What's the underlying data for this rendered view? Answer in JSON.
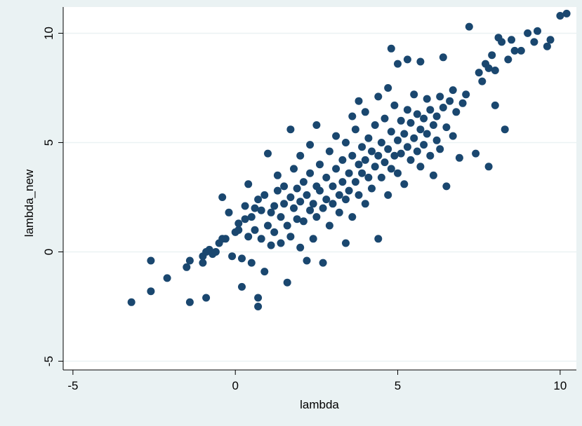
{
  "chart_data": {
    "type": "scatter",
    "title": "",
    "xlabel": "lambda",
    "ylabel": "lambda_new",
    "xlim": [
      -5.3,
      10.5
    ],
    "ylim": [
      -5.4,
      11.2
    ],
    "x_ticks": [
      -5,
      0,
      5,
      10
    ],
    "y_ticks": [
      -5,
      0,
      5,
      10
    ],
    "x_tick_labels": [
      "-5",
      "0",
      "5",
      "10"
    ],
    "y_tick_labels": [
      "-5",
      "0",
      "5",
      "10"
    ],
    "grid": "horizontal",
    "legend": "none",
    "marker_color": "#1a476f",
    "plot_background": "#ffffff",
    "outer_background": "#eaf2f3",
    "grid_color": "#eaf2f3",
    "points": [
      [
        -3.2,
        -2.3
      ],
      [
        -2.6,
        -1.8
      ],
      [
        -2.6,
        -0.4
      ],
      [
        -2.1,
        -1.2
      ],
      [
        -1.5,
        -0.7
      ],
      [
        -1.4,
        -0.4
      ],
      [
        -1.4,
        -2.3
      ],
      [
        -1.0,
        -0.2
      ],
      [
        -1.0,
        -0.5
      ],
      [
        -0.9,
        -2.1
      ],
      [
        -0.9,
        0.0
      ],
      [
        -0.8,
        0.1
      ],
      [
        -0.7,
        -0.1
      ],
      [
        -0.6,
        0.0
      ],
      [
        -0.5,
        0.4
      ],
      [
        -0.4,
        0.6
      ],
      [
        -0.4,
        2.5
      ],
      [
        -0.3,
        0.6
      ],
      [
        -0.2,
        1.8
      ],
      [
        -0.1,
        -0.2
      ],
      [
        0.0,
        0.9
      ],
      [
        0.1,
        1.0
      ],
      [
        0.1,
        1.3
      ],
      [
        0.2,
        -0.3
      ],
      [
        0.2,
        -1.6
      ],
      [
        0.3,
        1.5
      ],
      [
        0.3,
        2.1
      ],
      [
        0.4,
        3.1
      ],
      [
        0.4,
        0.7
      ],
      [
        0.5,
        -0.5
      ],
      [
        0.5,
        1.6
      ],
      [
        0.6,
        1.0
      ],
      [
        0.6,
        2.0
      ],
      [
        0.7,
        -2.1
      ],
      [
        0.7,
        -2.5
      ],
      [
        0.7,
        2.4
      ],
      [
        0.8,
        0.6
      ],
      [
        0.8,
        1.9
      ],
      [
        0.9,
        2.6
      ],
      [
        0.9,
        -0.9
      ],
      [
        1.0,
        1.2
      ],
      [
        1.0,
        4.5
      ],
      [
        1.1,
        1.8
      ],
      [
        1.1,
        0.3
      ],
      [
        1.2,
        2.1
      ],
      [
        1.2,
        0.9
      ],
      [
        1.3,
        3.5
      ],
      [
        1.3,
        2.8
      ],
      [
        1.4,
        0.4
      ],
      [
        1.4,
        1.6
      ],
      [
        1.5,
        2.2
      ],
      [
        1.5,
        3.0
      ],
      [
        1.6,
        -1.4
      ],
      [
        1.6,
        1.2
      ],
      [
        1.7,
        0.7
      ],
      [
        1.7,
        2.5
      ],
      [
        1.7,
        5.6
      ],
      [
        1.8,
        2.0
      ],
      [
        1.8,
        3.8
      ],
      [
        1.9,
        1.5
      ],
      [
        1.9,
        2.9
      ],
      [
        2.0,
        0.2
      ],
      [
        2.0,
        2.3
      ],
      [
        2.0,
        4.4
      ],
      [
        2.1,
        1.4
      ],
      [
        2.1,
        3.2
      ],
      [
        2.2,
        -0.4
      ],
      [
        2.2,
        2.6
      ],
      [
        2.3,
        4.9
      ],
      [
        2.3,
        1.9
      ],
      [
        2.3,
        3.6
      ],
      [
        2.4,
        2.2
      ],
      [
        2.4,
        0.6
      ],
      [
        2.5,
        3.0
      ],
      [
        2.5,
        1.6
      ],
      [
        2.5,
        5.8
      ],
      [
        2.6,
        2.8
      ],
      [
        2.6,
        4.0
      ],
      [
        2.7,
        2.0
      ],
      [
        2.7,
        -0.5
      ],
      [
        2.8,
        3.4
      ],
      [
        2.8,
        2.4
      ],
      [
        2.9,
        1.2
      ],
      [
        2.9,
        4.6
      ],
      [
        3.0,
        3.0
      ],
      [
        3.0,
        2.2
      ],
      [
        3.1,
        3.8
      ],
      [
        3.1,
        5.3
      ],
      [
        3.2,
        2.6
      ],
      [
        3.2,
        1.8
      ],
      [
        3.3,
        4.2
      ],
      [
        3.3,
        3.2
      ],
      [
        3.4,
        2.4
      ],
      [
        3.4,
        0.4
      ],
      [
        3.4,
        5.0
      ],
      [
        3.5,
        3.6
      ],
      [
        3.5,
        2.8
      ],
      [
        3.6,
        4.4
      ],
      [
        3.6,
        1.6
      ],
      [
        3.6,
        6.2
      ],
      [
        3.7,
        3.2
      ],
      [
        3.7,
        5.6
      ],
      [
        3.8,
        4.0
      ],
      [
        3.8,
        2.6
      ],
      [
        3.8,
        6.9
      ],
      [
        3.9,
        3.6
      ],
      [
        3.9,
        4.8
      ],
      [
        4.0,
        2.2
      ],
      [
        4.0,
        4.2
      ],
      [
        4.0,
        6.4
      ],
      [
        4.1,
        3.4
      ],
      [
        4.1,
        5.2
      ],
      [
        4.2,
        4.6
      ],
      [
        4.2,
        2.9
      ],
      [
        4.3,
        5.8
      ],
      [
        4.3,
        3.9
      ],
      [
        4.4,
        4.4
      ],
      [
        4.4,
        7.1
      ],
      [
        4.4,
        0.6
      ],
      [
        4.5,
        3.4
      ],
      [
        4.5,
        5.0
      ],
      [
        4.6,
        4.1
      ],
      [
        4.6,
        6.1
      ],
      [
        4.7,
        2.6
      ],
      [
        4.7,
        4.7
      ],
      [
        4.7,
        7.5
      ],
      [
        4.8,
        3.8
      ],
      [
        4.8,
        5.5
      ],
      [
        4.8,
        9.3
      ],
      [
        4.9,
        4.4
      ],
      [
        4.9,
        6.7
      ],
      [
        5.0,
        3.6
      ],
      [
        5.0,
        5.1
      ],
      [
        5.0,
        8.6
      ],
      [
        5.1,
        4.5
      ],
      [
        5.1,
        6.0
      ],
      [
        5.2,
        3.1
      ],
      [
        5.2,
        5.4
      ],
      [
        5.3,
        4.8
      ],
      [
        5.3,
        6.5
      ],
      [
        5.3,
        8.8
      ],
      [
        5.4,
        4.2
      ],
      [
        5.4,
        5.9
      ],
      [
        5.5,
        5.2
      ],
      [
        5.5,
        7.2
      ],
      [
        5.6,
        4.6
      ],
      [
        5.6,
        6.3
      ],
      [
        5.7,
        5.6
      ],
      [
        5.7,
        3.9
      ],
      [
        5.7,
        8.7
      ],
      [
        5.8,
        6.1
      ],
      [
        5.8,
        4.9
      ],
      [
        5.9,
        5.4
      ],
      [
        5.9,
        7.0
      ],
      [
        6.0,
        4.4
      ],
      [
        6.0,
        6.5
      ],
      [
        6.1,
        5.8
      ],
      [
        6.1,
        3.5
      ],
      [
        6.2,
        6.2
      ],
      [
        6.2,
        5.1
      ],
      [
        6.3,
        7.1
      ],
      [
        6.3,
        4.7
      ],
      [
        6.4,
        6.6
      ],
      [
        6.4,
        8.9
      ],
      [
        6.5,
        5.7
      ],
      [
        6.5,
        3.0
      ],
      [
        6.6,
        6.9
      ],
      [
        6.7,
        5.3
      ],
      [
        6.7,
        7.4
      ],
      [
        6.8,
        6.4
      ],
      [
        6.9,
        4.3
      ],
      [
        7.0,
        6.8
      ],
      [
        7.1,
        7.2
      ],
      [
        7.2,
        10.3
      ],
      [
        7.4,
        4.5
      ],
      [
        7.5,
        8.2
      ],
      [
        7.6,
        7.8
      ],
      [
        7.7,
        8.6
      ],
      [
        7.8,
        3.9
      ],
      [
        7.8,
        8.4
      ],
      [
        7.9,
        9.0
      ],
      [
        8.0,
        6.7
      ],
      [
        8.0,
        8.3
      ],
      [
        8.1,
        9.8
      ],
      [
        8.2,
        9.6
      ],
      [
        8.3,
        5.6
      ],
      [
        8.4,
        8.8
      ],
      [
        8.5,
        9.7
      ],
      [
        8.6,
        9.2
      ],
      [
        8.8,
        9.2
      ],
      [
        9.0,
        10.0
      ],
      [
        9.2,
        9.6
      ],
      [
        9.3,
        10.1
      ],
      [
        9.6,
        9.4
      ],
      [
        9.7,
        9.7
      ],
      [
        10.0,
        10.8
      ],
      [
        10.2,
        10.9
      ]
    ]
  }
}
